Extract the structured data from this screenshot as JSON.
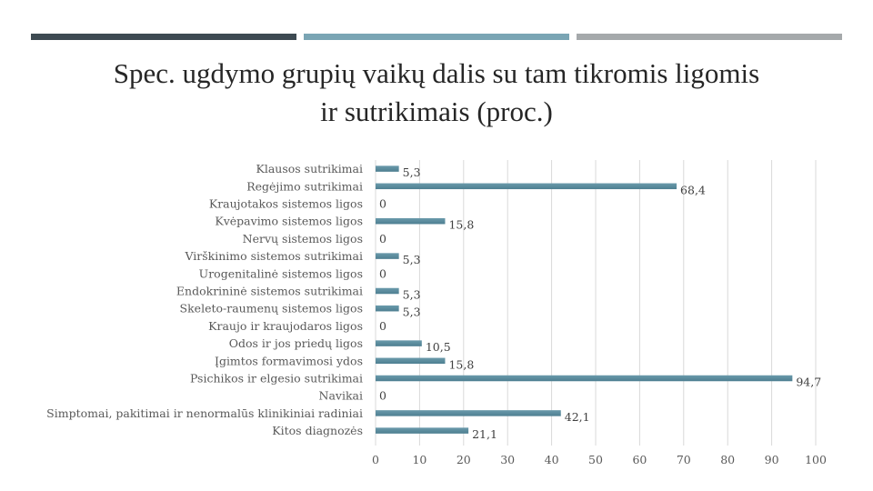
{
  "header": {
    "accent_colors": [
      "#3d4a52",
      "#7aa5b4",
      "#a5a9ab"
    ]
  },
  "title": {
    "line1": "Spec. ugdymo grupių vaikų dalis su tam tikromis ligomis",
    "line2": "ir sutrikimais (proc.)"
  },
  "chart_data": {
    "type": "bar",
    "orientation": "horizontal",
    "title": "Spec. ugdymo grupių vaikų dalis su tam tikromis ligomis ir sutrikimais (proc.)",
    "categories": [
      "Klausos sutrikimai",
      "Regėjimo sutrikimai",
      "Kraujotakos sistemos ligos",
      "Kvėpavimo sistemos ligos",
      "Nervų sistemos ligos",
      "Virškinimo sistemos sutrikimai",
      "Urogenitalinė sistemos ligos",
      "Endokrininė sistemos sutrikimai",
      "Skeleto-raumenų sistemos ligos",
      "Kraujo ir kraujodaros ligos",
      "Odos ir jos priedų ligos",
      "Įgimtos formavimosi ydos",
      "Psichikos ir elgesio sutrikimai",
      "Navikai",
      "Simptomai, pakitimai ir nenormalūs klinikiniai radiniai",
      "Kitos diagnozės"
    ],
    "values": [
      5.3,
      68.4,
      0,
      15.8,
      0,
      5.3,
      0,
      5.3,
      5.3,
      0,
      10.5,
      15.8,
      94.7,
      0,
      42.1,
      21.1
    ],
    "value_labels": [
      "5,3",
      "68,4",
      "0",
      "15,8",
      "0",
      "5,3",
      "0",
      "5,3",
      "5,3",
      "0",
      "10,5",
      "15,8",
      "94,7",
      "0",
      "42,1",
      "21,1"
    ],
    "xlim": [
      0,
      100
    ],
    "xticks": [
      0,
      10,
      20,
      30,
      40,
      50,
      60,
      70,
      80,
      90,
      100
    ],
    "xlabel": "",
    "ylabel": "",
    "grid": true,
    "bar_color": "#6a9aab",
    "bar_color_dark": "#4e7f91",
    "grid_color": "#d9d9d9"
  }
}
